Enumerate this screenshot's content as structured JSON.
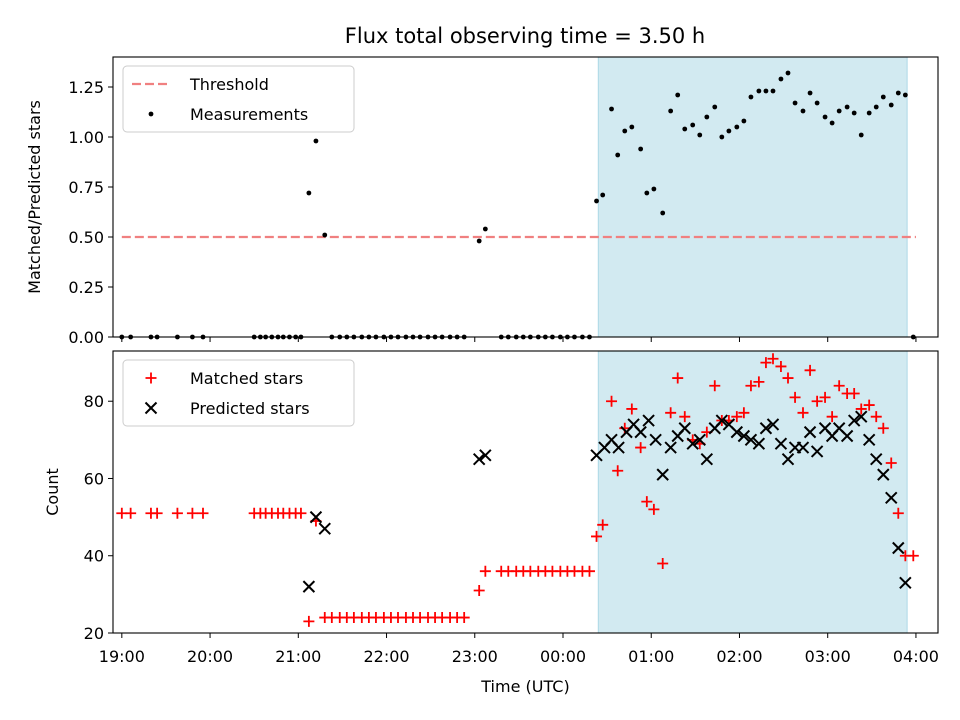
{
  "title": "Flux total observing time = 3.50 h",
  "colors": {
    "threshold": "#f08080",
    "measurement": "#000000",
    "matched": "#ff0000",
    "predicted": "#000000",
    "shade": "#add8e6"
  },
  "chart_data": [
    {
      "type": "scatter",
      "ylabel": "Matched/Predicted stars",
      "xlim": [
        18.9,
        28.25
      ],
      "ylim": [
        0,
        1.4
      ],
      "yticks": [
        0.0,
        0.25,
        0.5,
        0.75,
        1.0,
        1.25
      ],
      "ytick_labels": [
        "0.00",
        "0.25",
        "0.50",
        "0.75",
        "1.00",
        "1.25"
      ],
      "shaded_region": [
        24.4,
        27.9
      ],
      "legend": {
        "placement": "top-left",
        "entries": [
          "Threshold",
          "Measurements"
        ]
      },
      "threshold": {
        "name": "Threshold",
        "x": [
          19.0,
          28.0
        ],
        "y": [
          0.5,
          0.5
        ]
      },
      "series": [
        {
          "name": "Measurements",
          "x": [
            19.0,
            19.1,
            19.33,
            19.4,
            19.63,
            19.8,
            19.92,
            20.5,
            20.57,
            20.63,
            20.7,
            20.77,
            20.83,
            20.9,
            20.97,
            21.03,
            21.12,
            21.2,
            21.3,
            21.38,
            21.47,
            21.55,
            21.63,
            21.72,
            21.8,
            21.88,
            21.97,
            22.05,
            22.13,
            22.22,
            22.3,
            22.38,
            22.47,
            22.55,
            22.63,
            22.72,
            22.8,
            22.88,
            23.05,
            23.12,
            23.3,
            23.38,
            23.47,
            23.55,
            23.63,
            23.72,
            23.8,
            23.88,
            23.97,
            24.05,
            24.13,
            24.22,
            24.3,
            24.38,
            24.45,
            24.55,
            24.62,
            24.7,
            24.78,
            24.88,
            24.95,
            25.03,
            25.13,
            25.22,
            25.3,
            25.38,
            25.47,
            25.55,
            25.63,
            25.72,
            25.8,
            25.88,
            25.97,
            26.05,
            26.13,
            26.22,
            26.3,
            26.38,
            26.47,
            26.55,
            26.63,
            26.72,
            26.8,
            26.88,
            26.97,
            27.05,
            27.13,
            27.22,
            27.3,
            27.38,
            27.47,
            27.55,
            27.63,
            27.72,
            27.8,
            27.88,
            27.97
          ],
          "y": [
            0.0,
            0.0,
            0.0,
            0.0,
            0.0,
            0.0,
            0.0,
            0.0,
            0.0,
            0.0,
            0.0,
            0.0,
            0.0,
            0.0,
            0.0,
            0.0,
            0.72,
            0.98,
            0.51,
            0.0,
            0.0,
            0.0,
            0.0,
            0.0,
            0.0,
            0.0,
            0.0,
            0.0,
            0.0,
            0.0,
            0.0,
            0.0,
            0.0,
            0.0,
            0.0,
            0.0,
            0.0,
            0.0,
            0.48,
            0.54,
            0.0,
            0.0,
            0.0,
            0.0,
            0.0,
            0.0,
            0.0,
            0.0,
            0.0,
            0.0,
            0.0,
            0.0,
            0.0,
            0.68,
            0.71,
            1.14,
            0.91,
            1.03,
            1.05,
            0.94,
            0.72,
            0.74,
            0.62,
            1.13,
            1.21,
            1.04,
            1.06,
            1.01,
            1.1,
            1.15,
            1.0,
            1.03,
            1.05,
            1.08,
            1.2,
            1.23,
            1.23,
            1.23,
            1.29,
            1.32,
            1.17,
            1.13,
            1.22,
            1.17,
            1.1,
            1.07,
            1.13,
            1.15,
            1.12,
            1.01,
            1.12,
            1.15,
            1.2,
            1.16,
            1.22,
            1.21,
            0.0
          ]
        }
      ]
    },
    {
      "type": "scatter",
      "xlabel": "Time (UTC)",
      "ylabel": "Count",
      "xlim": [
        18.9,
        28.25
      ],
      "ylim": [
        20,
        93
      ],
      "yticks": [
        20,
        40,
        60,
        80
      ],
      "ytick_labels": [
        "20",
        "40",
        "60",
        "80"
      ],
      "xticks": [
        19,
        20,
        21,
        22,
        23,
        24,
        25,
        26,
        27,
        28
      ],
      "xtick_labels": [
        "19:00",
        "20:00",
        "21:00",
        "22:00",
        "23:00",
        "00:00",
        "01:00",
        "02:00",
        "03:00",
        "04:00"
      ],
      "shaded_region": [
        24.4,
        27.9
      ],
      "legend": {
        "placement": "top-left",
        "entries": [
          "Matched stars",
          "Predicted stars"
        ]
      },
      "series": [
        {
          "name": "Matched stars",
          "marker": "plus",
          "x": [
            19.0,
            19.1,
            19.33,
            19.4,
            19.63,
            19.8,
            19.92,
            20.5,
            20.57,
            20.63,
            20.7,
            20.77,
            20.83,
            20.9,
            20.97,
            21.03,
            21.12,
            21.2,
            21.3,
            21.38,
            21.47,
            21.55,
            21.63,
            21.72,
            21.8,
            21.88,
            21.97,
            22.05,
            22.13,
            22.22,
            22.3,
            22.38,
            22.47,
            22.55,
            22.63,
            22.72,
            22.8,
            22.88,
            23.05,
            23.12,
            23.3,
            23.38,
            23.47,
            23.55,
            23.63,
            23.72,
            23.8,
            23.88,
            23.97,
            24.05,
            24.13,
            24.22,
            24.3,
            24.38,
            24.45,
            24.55,
            24.62,
            24.7,
            24.78,
            24.88,
            24.95,
            25.03,
            25.13,
            25.22,
            25.3,
            25.38,
            25.47,
            25.55,
            25.63,
            25.72,
            25.8,
            25.88,
            25.97,
            26.05,
            26.13,
            26.22,
            26.3,
            26.38,
            26.47,
            26.55,
            26.63,
            26.72,
            26.8,
            26.88,
            26.97,
            27.05,
            27.13,
            27.22,
            27.3,
            27.38,
            27.47,
            27.55,
            27.63,
            27.72,
            27.8,
            27.88,
            27.97
          ],
          "y": [
            51,
            51,
            51,
            51,
            51,
            51,
            51,
            51,
            51,
            51,
            51,
            51,
            51,
            51,
            51,
            51,
            23,
            49,
            24,
            24,
            24,
            24,
            24,
            24,
            24,
            24,
            24,
            24,
            24,
            24,
            24,
            24,
            24,
            24,
            24,
            24,
            24,
            24,
            31,
            36,
            36,
            36,
            36,
            36,
            36,
            36,
            36,
            36,
            36,
            36,
            36,
            36,
            36,
            45,
            48,
            80,
            62,
            73,
            78,
            68,
            54,
            52,
            38,
            77,
            86,
            76,
            70,
            69,
            72,
            84,
            75,
            75,
            76,
            77,
            84,
            85,
            90,
            91,
            89,
            86,
            81,
            77,
            88,
            80,
            81,
            76,
            84,
            82,
            82,
            78,
            79,
            76,
            73,
            64,
            51,
            40,
            40
          ]
        },
        {
          "name": "Predicted stars",
          "marker": "x",
          "x": [
            21.12,
            21.2,
            21.3,
            23.05,
            23.12,
            24.38,
            24.47,
            24.55,
            24.63,
            24.72,
            24.8,
            24.88,
            24.97,
            25.05,
            25.13,
            25.22,
            25.3,
            25.38,
            25.47,
            25.55,
            25.63,
            25.72,
            25.8,
            25.88,
            25.97,
            26.05,
            26.13,
            26.22,
            26.3,
            26.38,
            26.47,
            26.55,
            26.63,
            26.72,
            26.8,
            26.88,
            26.97,
            27.05,
            27.13,
            27.22,
            27.3,
            27.38,
            27.47,
            27.55,
            27.63,
            27.72,
            27.8,
            27.88
          ],
          "y": [
            32,
            50,
            47,
            65,
            66,
            66,
            68,
            70,
            68,
            72,
            74,
            72,
            75,
            70,
            61,
            68,
            71,
            73,
            69,
            70,
            65,
            73,
            75,
            74,
            72,
            71,
            70,
            69,
            73,
            74,
            69,
            65,
            68,
            68,
            72,
            67,
            73,
            71,
            73,
            71,
            75,
            76,
            70,
            65,
            61,
            55,
            42,
            33
          ]
        }
      ]
    }
  ]
}
